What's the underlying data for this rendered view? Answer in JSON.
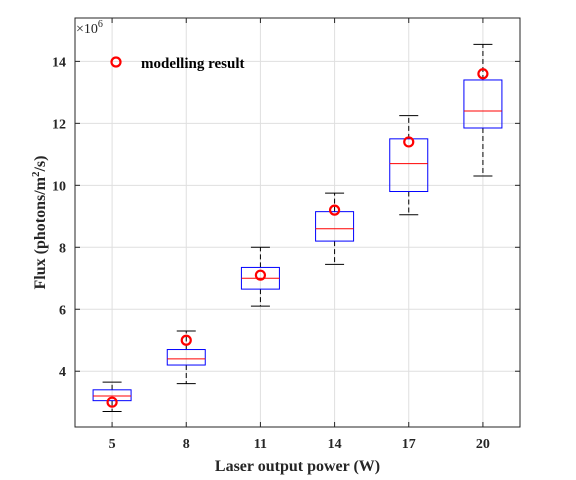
{
  "chart_data": {
    "type": "box",
    "xlabel": "Laser output power (W)",
    "ylabel_main": "Flux (photons/m",
    "ylabel_sup": "2",
    "ylabel_end": "/s)",
    "y_exponent_label": "×10",
    "y_exponent_power": "6",
    "categories": [
      "5",
      "8",
      "11",
      "14",
      "17",
      "20"
    ],
    "ylim": [
      2.2,
      15.4
    ],
    "y_ticks": [
      "4",
      "6",
      "8",
      "10",
      "12",
      "14"
    ],
    "y_tick_values": [
      4,
      6,
      8,
      10,
      12,
      14
    ],
    "grid": true,
    "boxes": [
      {
        "whisker_low": 2.7,
        "q1": 3.05,
        "median": 3.2,
        "q3": 3.4,
        "whisker_high": 3.65
      },
      {
        "whisker_low": 3.6,
        "q1": 4.2,
        "median": 4.4,
        "q3": 4.7,
        "whisker_high": 5.3
      },
      {
        "whisker_low": 6.1,
        "q1": 6.65,
        "median": 7.0,
        "q3": 7.35,
        "whisker_high": 8.0
      },
      {
        "whisker_low": 7.45,
        "q1": 8.2,
        "median": 8.6,
        "q3": 9.15,
        "whisker_high": 9.75
      },
      {
        "whisker_low": 9.05,
        "q1": 9.8,
        "median": 10.7,
        "q3": 11.5,
        "whisker_high": 12.25
      },
      {
        "whisker_low": 10.3,
        "q1": 11.85,
        "median": 12.4,
        "q3": 13.4,
        "whisker_high": 14.55
      }
    ],
    "modelling_result": [
      3.0,
      5.0,
      7.1,
      9.2,
      11.4,
      13.6
    ],
    "legend": {
      "label": "modelling result",
      "placement": "top-left"
    },
    "colors": {
      "box": "#0000ff",
      "median": "#ff0000",
      "whisker": "#000000",
      "marker": "#ff0000",
      "grid": "#dfdfdf",
      "axis": "#262626"
    }
  }
}
